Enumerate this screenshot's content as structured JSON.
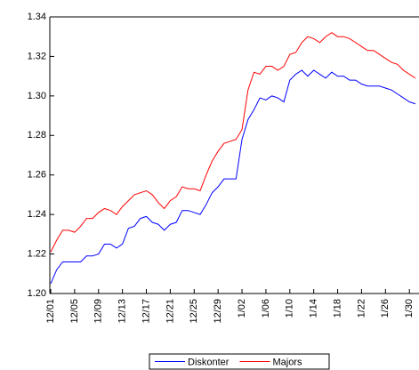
{
  "chart_data": {
    "type": "line",
    "categories": [
      "12/01",
      null,
      null,
      null,
      "12/05",
      null,
      null,
      null,
      "12/09",
      null,
      null,
      null,
      "12/13",
      null,
      null,
      null,
      "12/17",
      null,
      null,
      null,
      "12/21",
      null,
      null,
      null,
      "12/25",
      null,
      null,
      null,
      "12/29",
      null,
      null,
      null,
      "1/02",
      null,
      null,
      null,
      "1/06",
      null,
      null,
      null,
      "1/10",
      null,
      null,
      null,
      "1/14",
      null,
      null,
      null,
      "1/18",
      null,
      null,
      null,
      "1/22",
      null,
      null,
      null,
      "1/26",
      null,
      null,
      null,
      "1/30",
      null
    ],
    "series": [
      {
        "name": "Diskonter",
        "color": "#0000ff",
        "values": [
          1.205,
          1.212,
          1.216,
          1.216,
          1.216,
          1.216,
          1.219,
          1.219,
          1.22,
          1.225,
          1.225,
          1.223,
          1.225,
          1.233,
          1.234,
          1.238,
          1.239,
          1.236,
          1.235,
          1.232,
          1.235,
          1.236,
          1.242,
          1.242,
          1.241,
          1.24,
          1.245,
          1.251,
          1.254,
          1.258,
          1.258,
          1.258,
          1.278,
          1.288,
          1.293,
          1.299,
          1.298,
          1.3,
          1.299,
          1.297,
          1.308,
          1.311,
          1.313,
          1.31,
          1.313,
          1.311,
          1.309,
          1.312,
          1.31,
          1.31,
          1.308,
          1.308,
          1.306,
          1.305,
          1.305,
          1.305,
          1.304,
          1.303,
          1.301,
          1.299,
          1.297,
          1.296
        ]
      },
      {
        "name": "Majors",
        "color": "#ff0000",
        "values": [
          1.221,
          1.227,
          1.232,
          1.232,
          1.231,
          1.234,
          1.238,
          1.238,
          1.241,
          1.243,
          1.242,
          1.24,
          1.244,
          1.247,
          1.25,
          1.251,
          1.252,
          1.25,
          1.246,
          1.243,
          1.247,
          1.249,
          1.254,
          1.253,
          1.253,
          1.252,
          1.26,
          1.267,
          1.272,
          1.276,
          1.277,
          1.278,
          1.283,
          1.303,
          1.312,
          1.311,
          1.315,
          1.315,
          1.313,
          1.315,
          1.321,
          1.322,
          1.327,
          1.33,
          1.329,
          1.327,
          1.33,
          1.332,
          1.33,
          1.33,
          1.329,
          1.327,
          1.325,
          1.323,
          1.323,
          1.321,
          1.319,
          1.317,
          1.316,
          1.313,
          1.311,
          1.309
        ]
      }
    ],
    "ylim": [
      1.2,
      1.34
    ],
    "yticks": [
      {
        "value": 1.2,
        "label": "1.20"
      },
      {
        "value": 1.22,
        "label": "1.22"
      },
      {
        "value": 1.24,
        "label": "1.24"
      },
      {
        "value": 1.26,
        "label": "1.26"
      },
      {
        "value": 1.28,
        "label": "1.28"
      },
      {
        "value": 1.3,
        "label": "1.30"
      },
      {
        "value": 1.32,
        "label": "1.32"
      },
      {
        "value": 1.34,
        "label": "1.34"
      }
    ],
    "legend": "bottom"
  }
}
